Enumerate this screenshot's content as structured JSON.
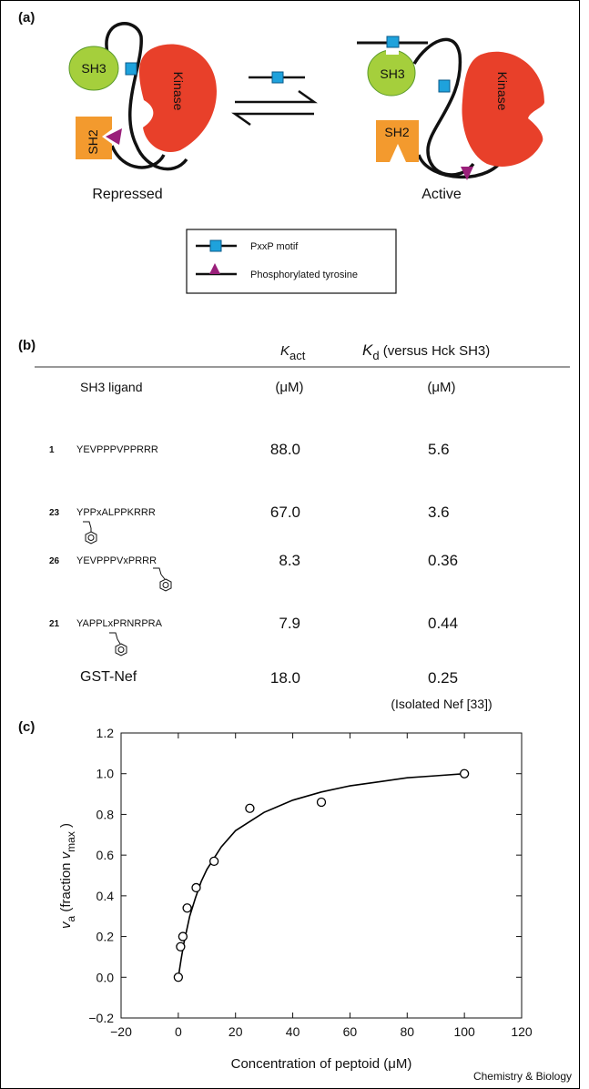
{
  "panel_a": {
    "label": "(a)",
    "domains": {
      "sh3": "SH3",
      "sh2": "SH2",
      "kinase": "Kinase"
    },
    "states": {
      "repressed": "Repressed",
      "active": "Active"
    },
    "legend": {
      "pxxp": "PxxP motif",
      "ptyr": "Phosphorylated tyrosine"
    }
  },
  "table": {
    "label": "(b)",
    "header": {
      "k_act": {
        "symbol": "K",
        "subscript": "act"
      },
      "k_d": {
        "symbol": "K",
        "subscript": "d",
        "suffix": " (versus Hck SH3)"
      },
      "ligand": "SH3 ligand",
      "k_act_unit": "(μM)",
      "k_d_unit": "(μM)"
    },
    "rows": [
      {
        "id": "1",
        "ligand": "YEVPPPVPPRRR",
        "k_act": "88.0",
        "k_d": "5.6"
      },
      {
        "id": "23",
        "ligand": "YPPxALPPKRRR",
        "k_act": "67.0",
        "k_d": "3.6"
      },
      {
        "id": "26",
        "ligand": "YEVPPPVxPRRR",
        "k_act": "8.3",
        "k_d": "0.36"
      },
      {
        "id": "21",
        "ligand": "YAPPLxPRNRPRA",
        "k_act": "7.9",
        "k_d": "0.44"
      },
      {
        "ligand": "GST-Nef",
        "k_act": "18.0",
        "k_d": "0.25"
      }
    ],
    "note": "(Isolated Nef [33])"
  },
  "chart_data": {
    "type": "scatter",
    "label": "(c)",
    "xlabel": "Concentration of peptoid (μM)",
    "ylabel": [
      {
        "text": "v",
        "style": "italic"
      },
      {
        "text": "a",
        "style": "sub"
      },
      {
        "text": " (fraction "
      },
      {
        "text": "v",
        "style": "italic"
      },
      {
        "text": "max",
        "style": "sub"
      },
      {
        "text": " )"
      }
    ],
    "x": [
      0,
      0.8,
      1.6,
      3.1,
      6.25,
      12.5,
      25,
      50,
      100
    ],
    "values": [
      0,
      0.15,
      0.2,
      0.34,
      0.44,
      0.57,
      0.83,
      0.86,
      1.0
    ],
    "curve": {
      "x": [
        0,
        1,
        2,
        4,
        6,
        8,
        10,
        15,
        20,
        30,
        40,
        50,
        60,
        70,
        80,
        90,
        100
      ],
      "values": [
        0,
        0.09,
        0.17,
        0.3,
        0.39,
        0.47,
        0.53,
        0.64,
        0.72,
        0.81,
        0.87,
        0.91,
        0.94,
        0.96,
        0.98,
        0.99,
        1.0
      ]
    },
    "color": "#000000",
    "xlim": [
      -20,
      120
    ],
    "ylim": [
      -0.2,
      1.2
    ],
    "xticks": [
      {
        "value": -20,
        "label": "−20"
      },
      0,
      20,
      40,
      60,
      80,
      100,
      120
    ],
    "yticks": [
      {
        "value": -0.2,
        "label": "−0.2"
      },
      {
        "value": 0,
        "label": "0.0"
      },
      0.2,
      0.4,
      0.6,
      0.8,
      {
        "value": 1,
        "label": "1.0"
      },
      1.2
    ],
    "grid": false
  },
  "credit": "Chemistry & Biology"
}
